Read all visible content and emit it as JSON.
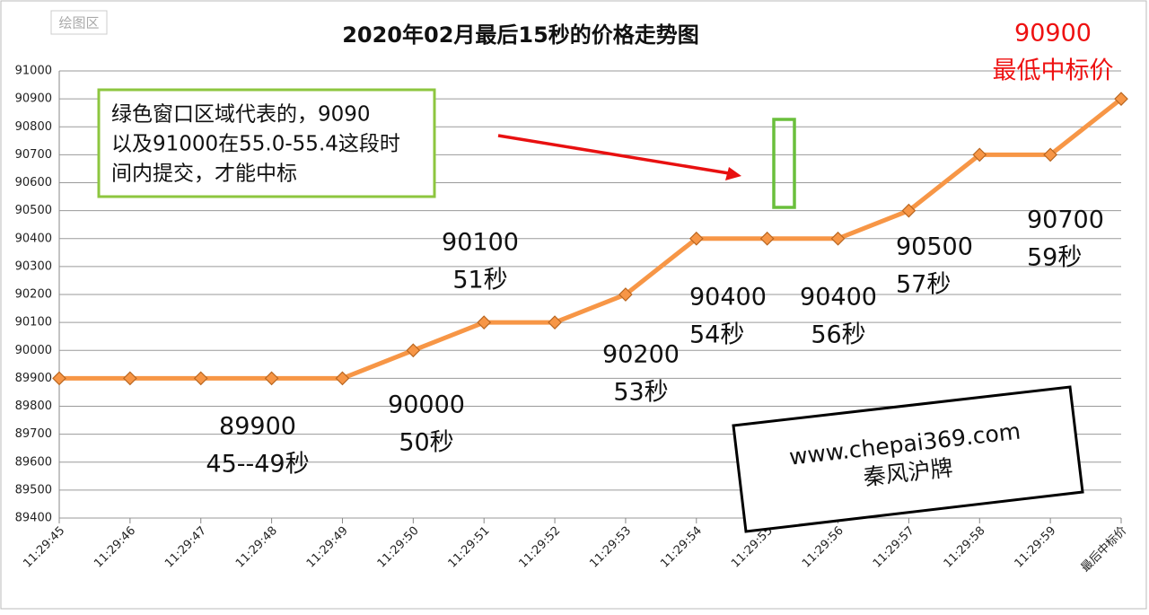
{
  "corner_label": "绘图区",
  "chart_data": {
    "type": "line",
    "title": "2020年02月最后15秒的价格走势图",
    "categories": [
      "11:29:45",
      "11:29:46",
      "11:29:47",
      "11:29:48",
      "11:29:49",
      "11:29:50",
      "11:29:51",
      "11:29:52",
      "11:29:53",
      "11:29:54",
      "11:29:55",
      "11:29:56",
      "11:29:57",
      "11:29:58",
      "11:29:59",
      "最后中标价"
    ],
    "series": [
      {
        "color": "#f79646",
        "values": [
          89900,
          89900,
          89900,
          89900,
          89900,
          90000,
          90100,
          90100,
          90200,
          90400,
          90400,
          90400,
          90500,
          90700,
          90700,
          90900
        ]
      }
    ],
    "ylim": [
      89400,
      91000
    ],
    "yticks": [
      89400,
      89500,
      89600,
      89700,
      89800,
      89900,
      90000,
      90100,
      90200,
      90300,
      90400,
      90500,
      90600,
      90700,
      90800,
      90900,
      91000
    ],
    "grid": true,
    "annotations": [
      {
        "lines": [
          "89900",
          "45--49秒"
        ]
      },
      {
        "lines": [
          "90000",
          "50秒"
        ]
      },
      {
        "lines": [
          "90100",
          "51秒"
        ]
      },
      {
        "lines": [
          "90200",
          "53秒"
        ]
      },
      {
        "lines": [
          "90400",
          "54秒"
        ]
      },
      {
        "lines": [
          "90400",
          "56秒"
        ]
      },
      {
        "lines": [
          "90500",
          "57秒"
        ]
      },
      {
        "lines": [
          "90700",
          "59秒"
        ]
      },
      {
        "lines": [
          "90900",
          "最低中标价"
        ]
      }
    ],
    "note": {
      "lines": [
        "绿色窗口区域代表的，9090",
        "以及91000在55.0-55.4这段时",
        "间内提交，才能中标"
      ]
    },
    "watermark": {
      "lines": [
        "www.chepai369.com",
        "秦风沪牌"
      ]
    }
  }
}
